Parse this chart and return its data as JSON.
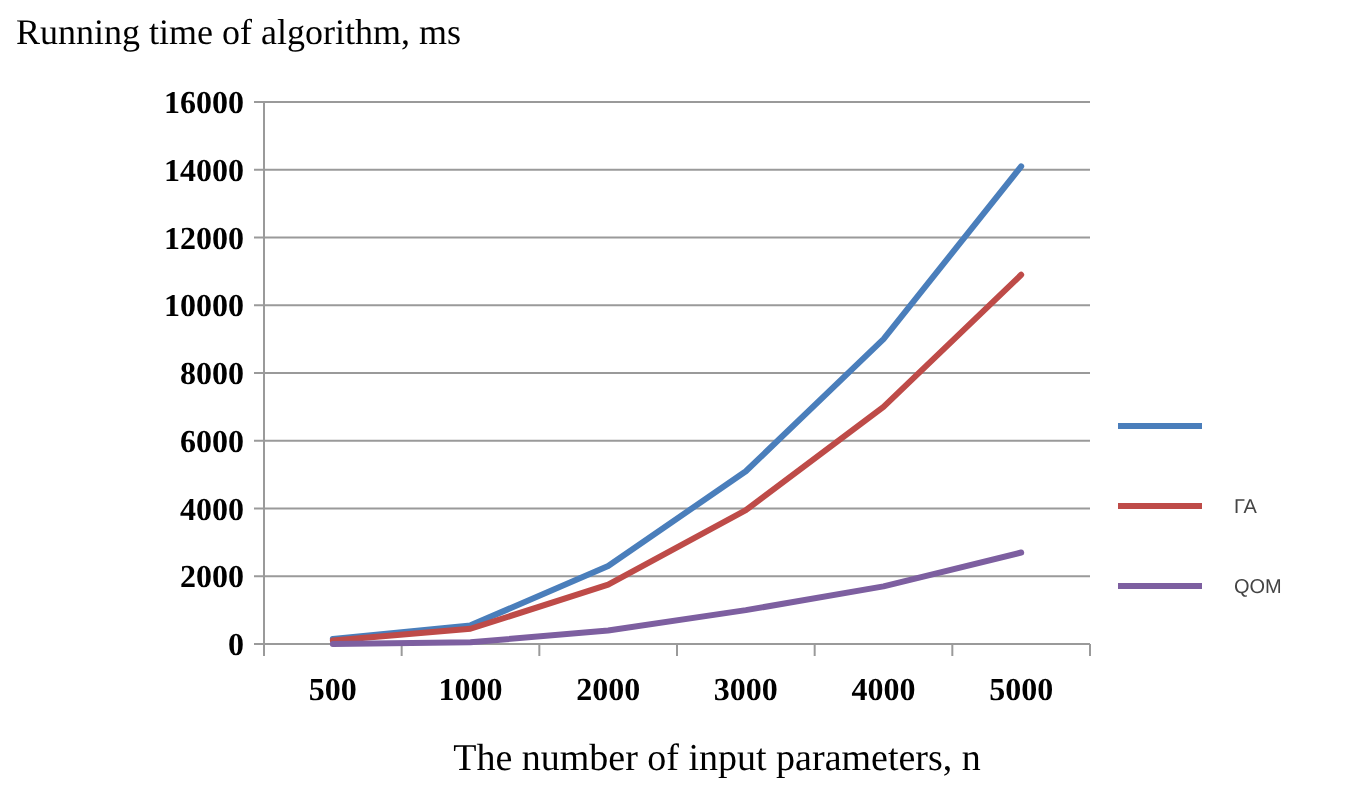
{
  "chart_data": {
    "type": "line",
    "ylabel": "Running time of algorithm, ms",
    "xlabel": "The number of input parameters, n",
    "categories": [
      "500",
      "1000",
      "2000",
      "3000",
      "4000",
      "5000"
    ],
    "series": [
      {
        "color": "#4a7ebb",
        "values": [
          150,
          550,
          2300,
          5100,
          9000,
          14100
        ]
      },
      {
        "name": "ГА",
        "color": "#be4b48",
        "values": [
          100,
          450,
          1750,
          3950,
          7000,
          10900
        ]
      },
      {
        "name": "QOM",
        "color": "#7d5fa0",
        "values": [
          0,
          50,
          400,
          1000,
          1700,
          2700
        ]
      }
    ],
    "ylim": [
      0,
      16000
    ],
    "yticks": [
      0,
      2000,
      4000,
      6000,
      8000,
      10000,
      12000,
      14000,
      16000
    ],
    "grid": "y",
    "legend": "right",
    "marker": "none",
    "line_style": "solid"
  }
}
